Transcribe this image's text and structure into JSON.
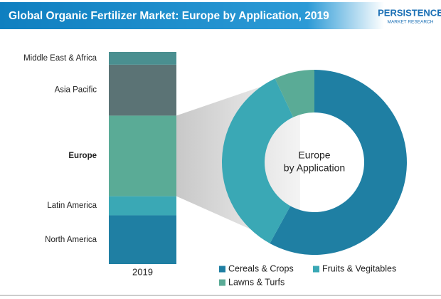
{
  "logo": [
    "PERSISTENCE",
    "MARKET RESEARCH"
  ],
  "chart_data": [
    {
      "type": "bar",
      "stacked": true,
      "title": "Global Organic Fertilizer Market: Europe by Application, 2019",
      "categories": [
        "2019"
      ],
      "series": [
        {
          "name": "North America",
          "color": "#1f7fa3",
          "values": [
            23
          ]
        },
        {
          "name": "Latin America",
          "color": "#3aa8b5",
          "values": [
            9
          ]
        },
        {
          "name": "Europe",
          "color": "#5aab96",
          "values": [
            38
          ],
          "bold": true
        },
        {
          "name": "Asia Pacific",
          "color": "#5b7375",
          "values": [
            24
          ]
        },
        {
          "name": "Middle East & Africa",
          "color": "#4a8f90",
          "values": [
            6
          ]
        }
      ]
    },
    {
      "type": "pie",
      "donut": true,
      "center_label": [
        "Europe",
        "by Application"
      ],
      "categories": [
        "Cereals & Crops",
        "Fruits & Vegitables",
        "Lawns & Turfs"
      ],
      "values": [
        58,
        35,
        7
      ],
      "colors": [
        "#1f7fa3",
        "#3aa8b5",
        "#5aab96"
      ],
      "legend": "bottom"
    }
  ]
}
